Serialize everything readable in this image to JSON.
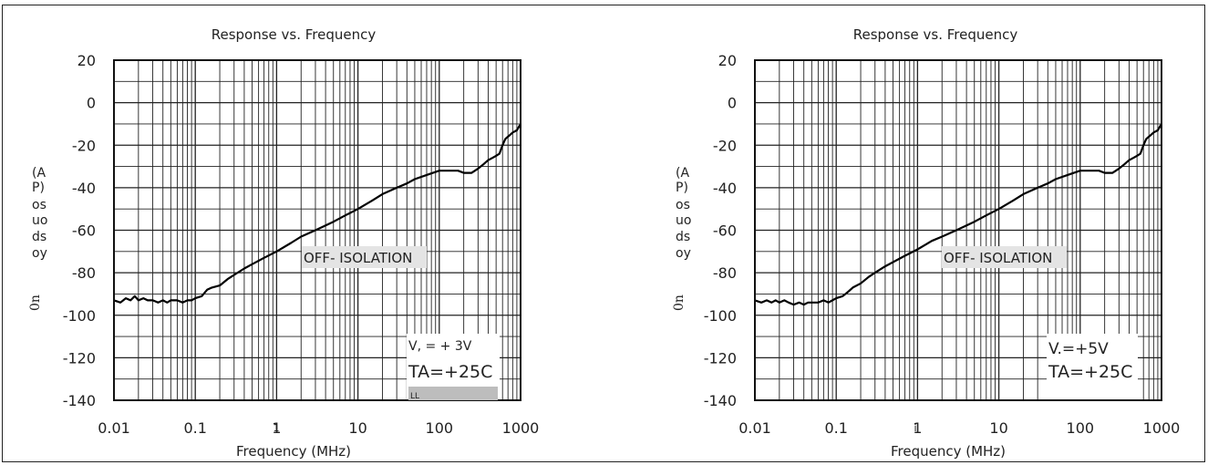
{
  "colors": {
    "line": "#000000",
    "grid": "#222222",
    "text": "#222222",
    "label_bg": "#e4e4e4",
    "bar": "#bdbdbd"
  },
  "chart_data": [
    {
      "type": "line",
      "title": "Response vs. Frequency",
      "xlabel": "Frequency (MHz)",
      "ylabel": "(A P) os uo ds oy 0n",
      "ylabel_parts": [
        "(A",
        "P)",
        "os",
        "uo",
        "ds",
        "oy",
        "0n"
      ],
      "xscale": "log",
      "xlim": [
        0.01,
        1000
      ],
      "ylim": [
        -140,
        20
      ],
      "x_tick_labels": [
        "0.01",
        "0.1",
        "1",
        "10",
        "100",
        "1000"
      ],
      "y_tick_labels": [
        "20",
        "0",
        "-20",
        "-40",
        "-60",
        "-80",
        "-100",
        "-120",
        "-140"
      ],
      "grid": true,
      "series": [
        {
          "x": [
            0.01,
            0.012,
            0.014,
            0.016,
            0.018,
            0.02,
            0.023,
            0.026,
            0.03,
            0.035,
            0.04,
            0.045,
            0.05,
            0.06,
            0.07,
            0.08,
            0.09,
            0.1,
            0.12,
            0.14,
            0.16,
            0.2,
            0.25,
            0.3,
            0.4,
            0.5,
            0.7,
            1,
            1.5,
            2,
            3,
            5,
            7,
            10,
            15,
            20,
            30,
            40,
            50,
            70,
            100,
            130,
            170,
            200,
            250,
            300,
            350,
            400,
            450,
            500,
            550,
            600,
            650,
            700,
            800,
            900,
            1000
          ],
          "y": [
            -93,
            -94,
            -92,
            -93,
            -91,
            -93,
            -92,
            -93,
            -93,
            -94,
            -93,
            -94,
            -93,
            -93,
            -94,
            -93,
            -93,
            -92,
            -91,
            -88,
            -87,
            -86,
            -83,
            -81,
            -78,
            -76,
            -73,
            -70,
            -66,
            -63,
            -60,
            -56,
            -53,
            -50,
            -46,
            -43,
            -40,
            -38,
            -36,
            -34,
            -32,
            -32,
            -32,
            -33,
            -33,
            -31,
            -29,
            -27,
            -26,
            -25,
            -24,
            -20,
            -17,
            -16,
            -14,
            -13,
            -10
          ]
        }
      ],
      "annotations": {
        "isolation": "OFF- ISOLATION",
        "supply": "V, = + 3V",
        "temperature": "TA=+25C",
        "marker": "LL",
        "axis_glyph": "1"
      }
    },
    {
      "type": "line",
      "title": "Response vs. Frequency",
      "xlabel": "Frequency (MHz)",
      "ylabel": "(A P) os uo ds oy 0n",
      "ylabel_parts": [
        "(A",
        "P)",
        "os",
        "uo",
        "ds",
        "oy",
        "0n"
      ],
      "xscale": "log",
      "xlim": [
        0.01,
        1000
      ],
      "ylim": [
        -140,
        20
      ],
      "x_tick_labels": [
        "0.01",
        "0.1",
        "1",
        "10",
        "100",
        "1000"
      ],
      "y_tick_labels": [
        "20",
        "0",
        "-20",
        "-40",
        "-60",
        "-80",
        "-100",
        "-120",
        "-140"
      ],
      "grid": true,
      "series": [
        {
          "x": [
            0.01,
            0.012,
            0.014,
            0.016,
            0.018,
            0.02,
            0.023,
            0.026,
            0.03,
            0.035,
            0.04,
            0.045,
            0.05,
            0.06,
            0.07,
            0.08,
            0.09,
            0.1,
            0.12,
            0.14,
            0.16,
            0.2,
            0.25,
            0.3,
            0.4,
            0.5,
            0.7,
            1,
            1.5,
            2,
            3,
            5,
            7,
            10,
            15,
            20,
            30,
            40,
            50,
            70,
            100,
            130,
            170,
            200,
            250,
            300,
            350,
            400,
            450,
            500,
            550,
            600,
            650,
            700,
            800,
            900,
            1000
          ],
          "y": [
            -93,
            -94,
            -93,
            -94,
            -93,
            -94,
            -93,
            -94,
            -95,
            -94,
            -95,
            -94,
            -94,
            -94,
            -93,
            -94,
            -93,
            -92,
            -91,
            -89,
            -87,
            -85,
            -82,
            -80,
            -77,
            -75,
            -72,
            -69,
            -65,
            -63,
            -60,
            -56,
            -53,
            -50,
            -46,
            -43,
            -40,
            -38,
            -36,
            -34,
            -32,
            -32,
            -32,
            -33,
            -33,
            -31,
            -29,
            -27,
            -26,
            -25,
            -24,
            -20,
            -17,
            -16,
            -14,
            -13,
            -10
          ]
        }
      ],
      "annotations": {
        "isolation": "OFF- ISOLATION",
        "supply": "V.=+5V",
        "temperature": "TA=+25C",
        "marker": "",
        "axis_glyph": "i"
      }
    }
  ]
}
